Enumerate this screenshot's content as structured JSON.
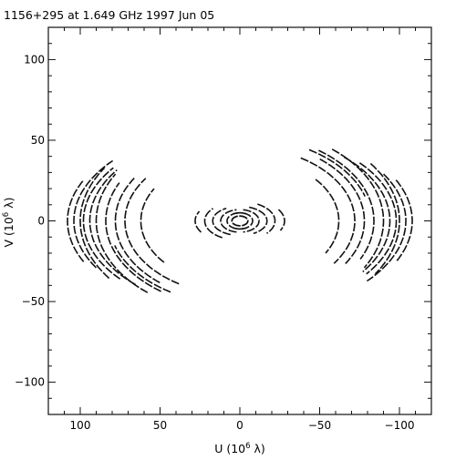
{
  "chart_data": {
    "type": "scatter",
    "title": "1156+295 at 1.649 GHz 1997 Jun 05",
    "xlabel": "U (10",
    "xlabel_exp": "6",
    "xlabel_unit": " λ)",
    "ylabel": "V (10",
    "ylabel_exp": "6",
    "ylabel_unit": " λ)",
    "xlim": [
      120,
      -120
    ],
    "ylim": [
      -120,
      120
    ],
    "x_ticks": [
      100,
      50,
      0,
      -50,
      -100
    ],
    "x_tick_labels": [
      "100",
      "50",
      "0",
      "−50",
      "−100"
    ],
    "y_ticks": [
      100,
      50,
      0,
      -50,
      -100
    ],
    "y_tick_labels": [
      "100",
      "50",
      "0",
      "−50",
      "−100"
    ],
    "grid": false,
    "legend": "none",
    "marker_color": "#111111",
    "description_of_tracks": "uv-coverage elliptical arc tracks (point-symmetric)",
    "tracks": [
      {
        "cx": 0,
        "cy": 0,
        "a": 82,
        "b": 52,
        "t0": 122,
        "t1": 163
      },
      {
        "cx": 0,
        "cy": 0,
        "a": 84,
        "b": 54,
        "t0": 126,
        "t1": 206
      },
      {
        "cx": 0,
        "cy": 0,
        "a": 90,
        "b": 58,
        "t0": 130,
        "t1": 210
      },
      {
        "cx": 0,
        "cy": 0,
        "a": 94,
        "b": 55,
        "t0": 134,
        "t1": 215
      },
      {
        "cx": 0,
        "cy": 0,
        "a": 98,
        "b": 56,
        "t0": 140,
        "t1": 216
      },
      {
        "cx": 0,
        "cy": 0,
        "a": 100,
        "b": 62,
        "t0": 145,
        "t1": 212
      },
      {
        "cx": 0,
        "cy": 0,
        "a": 104,
        "b": 58,
        "t0": 150,
        "t1": 220
      },
      {
        "cx": 0,
        "cy": 0,
        "a": 108,
        "b": 60,
        "t0": 155,
        "t1": 205
      },
      {
        "cx": 0,
        "cy": 0,
        "a": 72,
        "b": 46,
        "t0": 122,
        "t1": 215
      },
      {
        "cx": 0,
        "cy": 0,
        "a": 78,
        "b": 50,
        "t0": 130,
        "t1": 212
      },
      {
        "cx": 0,
        "cy": 0,
        "a": 62,
        "b": 40,
        "t0": 140,
        "t1": 210
      },
      {
        "cx": 0,
        "cy": 0,
        "a": 28,
        "b": 14,
        "t0": 150,
        "t1": 205
      },
      {
        "cx": 0,
        "cy": 0,
        "a": 22,
        "b": 12,
        "t0": 120,
        "t1": 220
      },
      {
        "cx": 0,
        "cy": 0,
        "a": 17,
        "b": 9,
        "t0": 110,
        "t1": 240
      },
      {
        "cx": 0,
        "cy": 0,
        "a": 12,
        "b": 7,
        "t0": 100,
        "t1": 260
      },
      {
        "cx": 0,
        "cy": 0,
        "a": 8,
        "b": 5,
        "t0": 60,
        "t1": 300
      },
      {
        "cx": 0,
        "cy": 0,
        "a": 5,
        "b": 3,
        "t0": 0,
        "t1": 360
      }
    ]
  }
}
